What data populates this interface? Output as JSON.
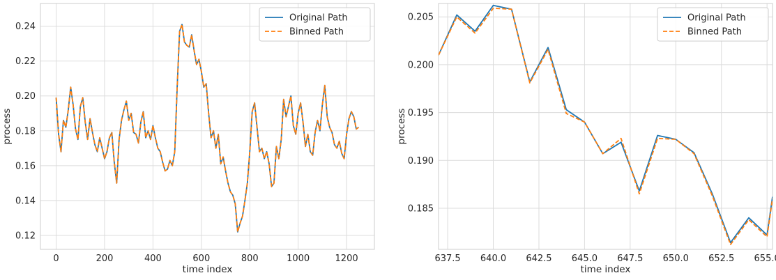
{
  "chart_data": [
    {
      "type": "line",
      "xlabel": "time index",
      "ylabel": "process",
      "xlim": [
        -65,
        1315
      ],
      "ylim": [
        0.112,
        0.253
      ],
      "xticks": [
        0,
        200,
        400,
        600,
        800,
        1000,
        1200
      ],
      "yticks": [
        0.12,
        0.14,
        0.16,
        0.18,
        0.2,
        0.22,
        0.24
      ],
      "ytick_labels": [
        "0.12",
        "0.14",
        "0.16",
        "0.18",
        "0.20",
        "0.22",
        "0.24"
      ],
      "grid": true,
      "legend": "top-right",
      "series": [
        {
          "name": "Original Path",
          "color": "#1f77b4",
          "style": "solid"
        },
        {
          "name": "Binned Path",
          "color": "#ff7f0e",
          "style": "dashed"
        }
      ],
      "x": [
        0,
        10,
        20,
        30,
        40,
        50,
        60,
        70,
        80,
        90,
        100,
        110,
        120,
        130,
        140,
        150,
        160,
        170,
        180,
        190,
        200,
        210,
        220,
        230,
        240,
        250,
        260,
        270,
        280,
        290,
        300,
        310,
        320,
        330,
        340,
        350,
        360,
        370,
        380,
        390,
        400,
        410,
        420,
        430,
        440,
        450,
        460,
        470,
        480,
        490,
        500,
        510,
        520,
        530,
        540,
        550,
        560,
        570,
        580,
        590,
        600,
        610,
        620,
        630,
        640,
        650,
        660,
        670,
        680,
        690,
        700,
        710,
        720,
        730,
        740,
        750,
        760,
        770,
        780,
        790,
        800,
        810,
        820,
        830,
        840,
        850,
        860,
        870,
        880,
        890,
        900,
        910,
        920,
        930,
        940,
        950,
        960,
        970,
        980,
        990,
        1000,
        1010,
        1020,
        1030,
        1040,
        1050,
        1060,
        1070,
        1080,
        1090,
        1100,
        1110,
        1120,
        1130,
        1140,
        1150,
        1160,
        1170,
        1180,
        1190,
        1200,
        1210,
        1220,
        1230,
        1240,
        1250
      ],
      "y": [
        0.199,
        0.178,
        0.168,
        0.186,
        0.182,
        0.192,
        0.205,
        0.195,
        0.181,
        0.175,
        0.194,
        0.199,
        0.185,
        0.175,
        0.187,
        0.179,
        0.172,
        0.168,
        0.176,
        0.17,
        0.164,
        0.168,
        0.176,
        0.179,
        0.162,
        0.15,
        0.175,
        0.186,
        0.192,
        0.197,
        0.186,
        0.19,
        0.179,
        0.178,
        0.173,
        0.185,
        0.191,
        0.176,
        0.18,
        0.175,
        0.183,
        0.176,
        0.17,
        0.168,
        0.162,
        0.157,
        0.158,
        0.163,
        0.16,
        0.168,
        0.205,
        0.237,
        0.241,
        0.231,
        0.229,
        0.228,
        0.235,
        0.226,
        0.218,
        0.221,
        0.214,
        0.205,
        0.207,
        0.19,
        0.176,
        0.18,
        0.17,
        0.178,
        0.161,
        0.165,
        0.157,
        0.15,
        0.145,
        0.143,
        0.138,
        0.122,
        0.127,
        0.131,
        0.14,
        0.15,
        0.168,
        0.191,
        0.196,
        0.182,
        0.168,
        0.17,
        0.164,
        0.168,
        0.161,
        0.148,
        0.15,
        0.171,
        0.164,
        0.175,
        0.198,
        0.188,
        0.194,
        0.2,
        0.183,
        0.178,
        0.19,
        0.196,
        0.185,
        0.171,
        0.178,
        0.168,
        0.166,
        0.179,
        0.186,
        0.18,
        0.195,
        0.206,
        0.188,
        0.182,
        0.179,
        0.172,
        0.17,
        0.174,
        0.167,
        0.164,
        0.178,
        0.187,
        0.191,
        0.188,
        0.181,
        0.182
      ]
    },
    {
      "type": "line",
      "xlabel": "time index",
      "ylabel": "process",
      "xlim": [
        637,
        655.3
      ],
      "ylim": [
        0.1807,
        0.2064
      ],
      "xticks": [
        637.5,
        640.0,
        642.5,
        645.0,
        647.5,
        650.0,
        652.5,
        655.0
      ],
      "xtick_labels": [
        "637.5",
        "640.0",
        "642.5",
        "645.0",
        "647.5",
        "650.0",
        "652.5",
        "655.0"
      ],
      "yticks": [
        0.185,
        0.19,
        0.195,
        0.2,
        0.205
      ],
      "ytick_labels": [
        "0.185",
        "0.190",
        "0.195",
        "0.200",
        "0.205"
      ],
      "grid": true,
      "legend": "top-right",
      "series": [
        {
          "name": "Original Path",
          "color": "#1f77b4",
          "style": "solid",
          "x": [
            637,
            638,
            639,
            640,
            641,
            642,
            643,
            644,
            645,
            646,
            647,
            648,
            649,
            650,
            651,
            652,
            653,
            654,
            655,
            655.3
          ],
          "y": [
            0.201,
            0.2052,
            0.2035,
            0.2062,
            0.2058,
            0.1982,
            0.2018,
            0.1953,
            0.194,
            0.1907,
            0.1919,
            0.1868,
            0.1926,
            0.1922,
            0.1908,
            0.1865,
            0.1814,
            0.184,
            0.1822,
            0.1862
          ]
        },
        {
          "name": "Binned Path",
          "color": "#ff7f0e",
          "style": "dashed",
          "x": [
            637,
            638,
            639,
            640,
            641,
            642,
            643,
            644,
            645,
            646,
            647,
            648,
            649,
            650,
            651,
            652,
            653,
            654,
            655,
            655.3
          ],
          "y": [
            0.201,
            0.205,
            0.2033,
            0.2059,
            0.2058,
            0.1981,
            0.2016,
            0.1949,
            0.194,
            0.1907,
            0.1923,
            0.1865,
            0.1923,
            0.1922,
            0.1907,
            0.1863,
            0.1812,
            0.1838,
            0.182,
            0.186
          ]
        }
      ]
    }
  ]
}
